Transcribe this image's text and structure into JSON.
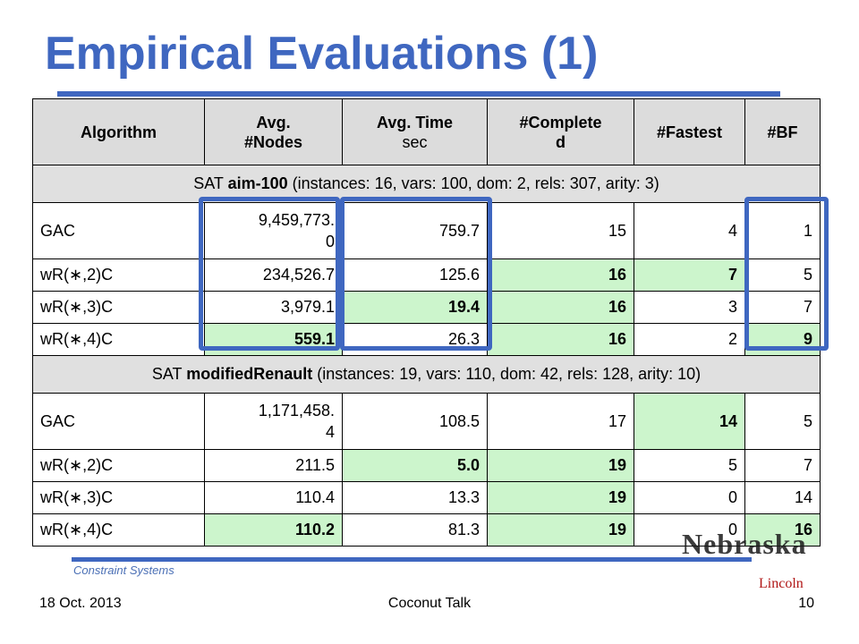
{
  "title": "Empirical Evaluations (1)",
  "table": {
    "headers": [
      {
        "line1": "Algorithm",
        "line2": ""
      },
      {
        "line1": "Avg.",
        "line2": "#Nodes"
      },
      {
        "line1": "Avg. Time",
        "line2": "sec"
      },
      {
        "line1": "#Complete",
        "line2": "d"
      },
      {
        "line1": "#Fastest",
        "line2": ""
      },
      {
        "line1": "#BF",
        "line2": ""
      }
    ],
    "section1": {
      "prefix": "SAT ",
      "name": "aim-100",
      "detail": " (instances: 16, vars: 100, dom: 2, rels: 307, arity: 3)"
    },
    "group1": [
      {
        "alg": "GAC",
        "nodes_l1": "9,459,773.",
        "nodes_l2": "0",
        "time": "759.7",
        "completed": "15",
        "fastest": "4",
        "bf": "1"
      },
      {
        "alg": "wR(∗,2)C",
        "nodes": "234,526.7",
        "time": "125.6",
        "completed": "16",
        "fastest": "7",
        "bf": "5"
      },
      {
        "alg": "wR(∗,3)C",
        "nodes": "3,979.1",
        "time": "19.4",
        "completed": "16",
        "fastest": "3",
        "bf": "7"
      },
      {
        "alg": "wR(∗,4)C",
        "nodes": "559.1",
        "time": "26.3",
        "completed": "16",
        "fastest": "2",
        "bf": "9"
      }
    ],
    "section2": {
      "prefix": "SAT ",
      "name": "modifiedRenault",
      "detail": "  (instances: 19, vars: 110, dom: 42, rels: 128, arity: 10)"
    },
    "group2": [
      {
        "alg": "GAC",
        "nodes_l1": "1,171,458.",
        "nodes_l2": "4",
        "time": "108.5",
        "completed": "17",
        "fastest": "14",
        "bf": "5"
      },
      {
        "alg": "wR(∗,2)C",
        "nodes": "211.5",
        "time": "5.0",
        "completed": "19",
        "fastest": "5",
        "bf": "7"
      },
      {
        "alg": "wR(∗,3)C",
        "nodes": "110.4",
        "time": "13.3",
        "completed": "19",
        "fastest": "0",
        "bf": "14"
      },
      {
        "alg": "wR(∗,4)C",
        "nodes": "110.2",
        "time": "81.3",
        "completed": "19",
        "fastest": "0",
        "bf": "16"
      }
    ]
  },
  "watermark": "Constraint Systems",
  "logo_text": "Nebraska",
  "logo_sub": "Lincoln",
  "footer": {
    "date": "18 Oct. 2013",
    "center": "Coconut Talk",
    "page": "10"
  },
  "colors": {
    "accent": "#3f67c0",
    "highlight": "#ccf5cc",
    "header_bg": "#dcdcdc"
  }
}
